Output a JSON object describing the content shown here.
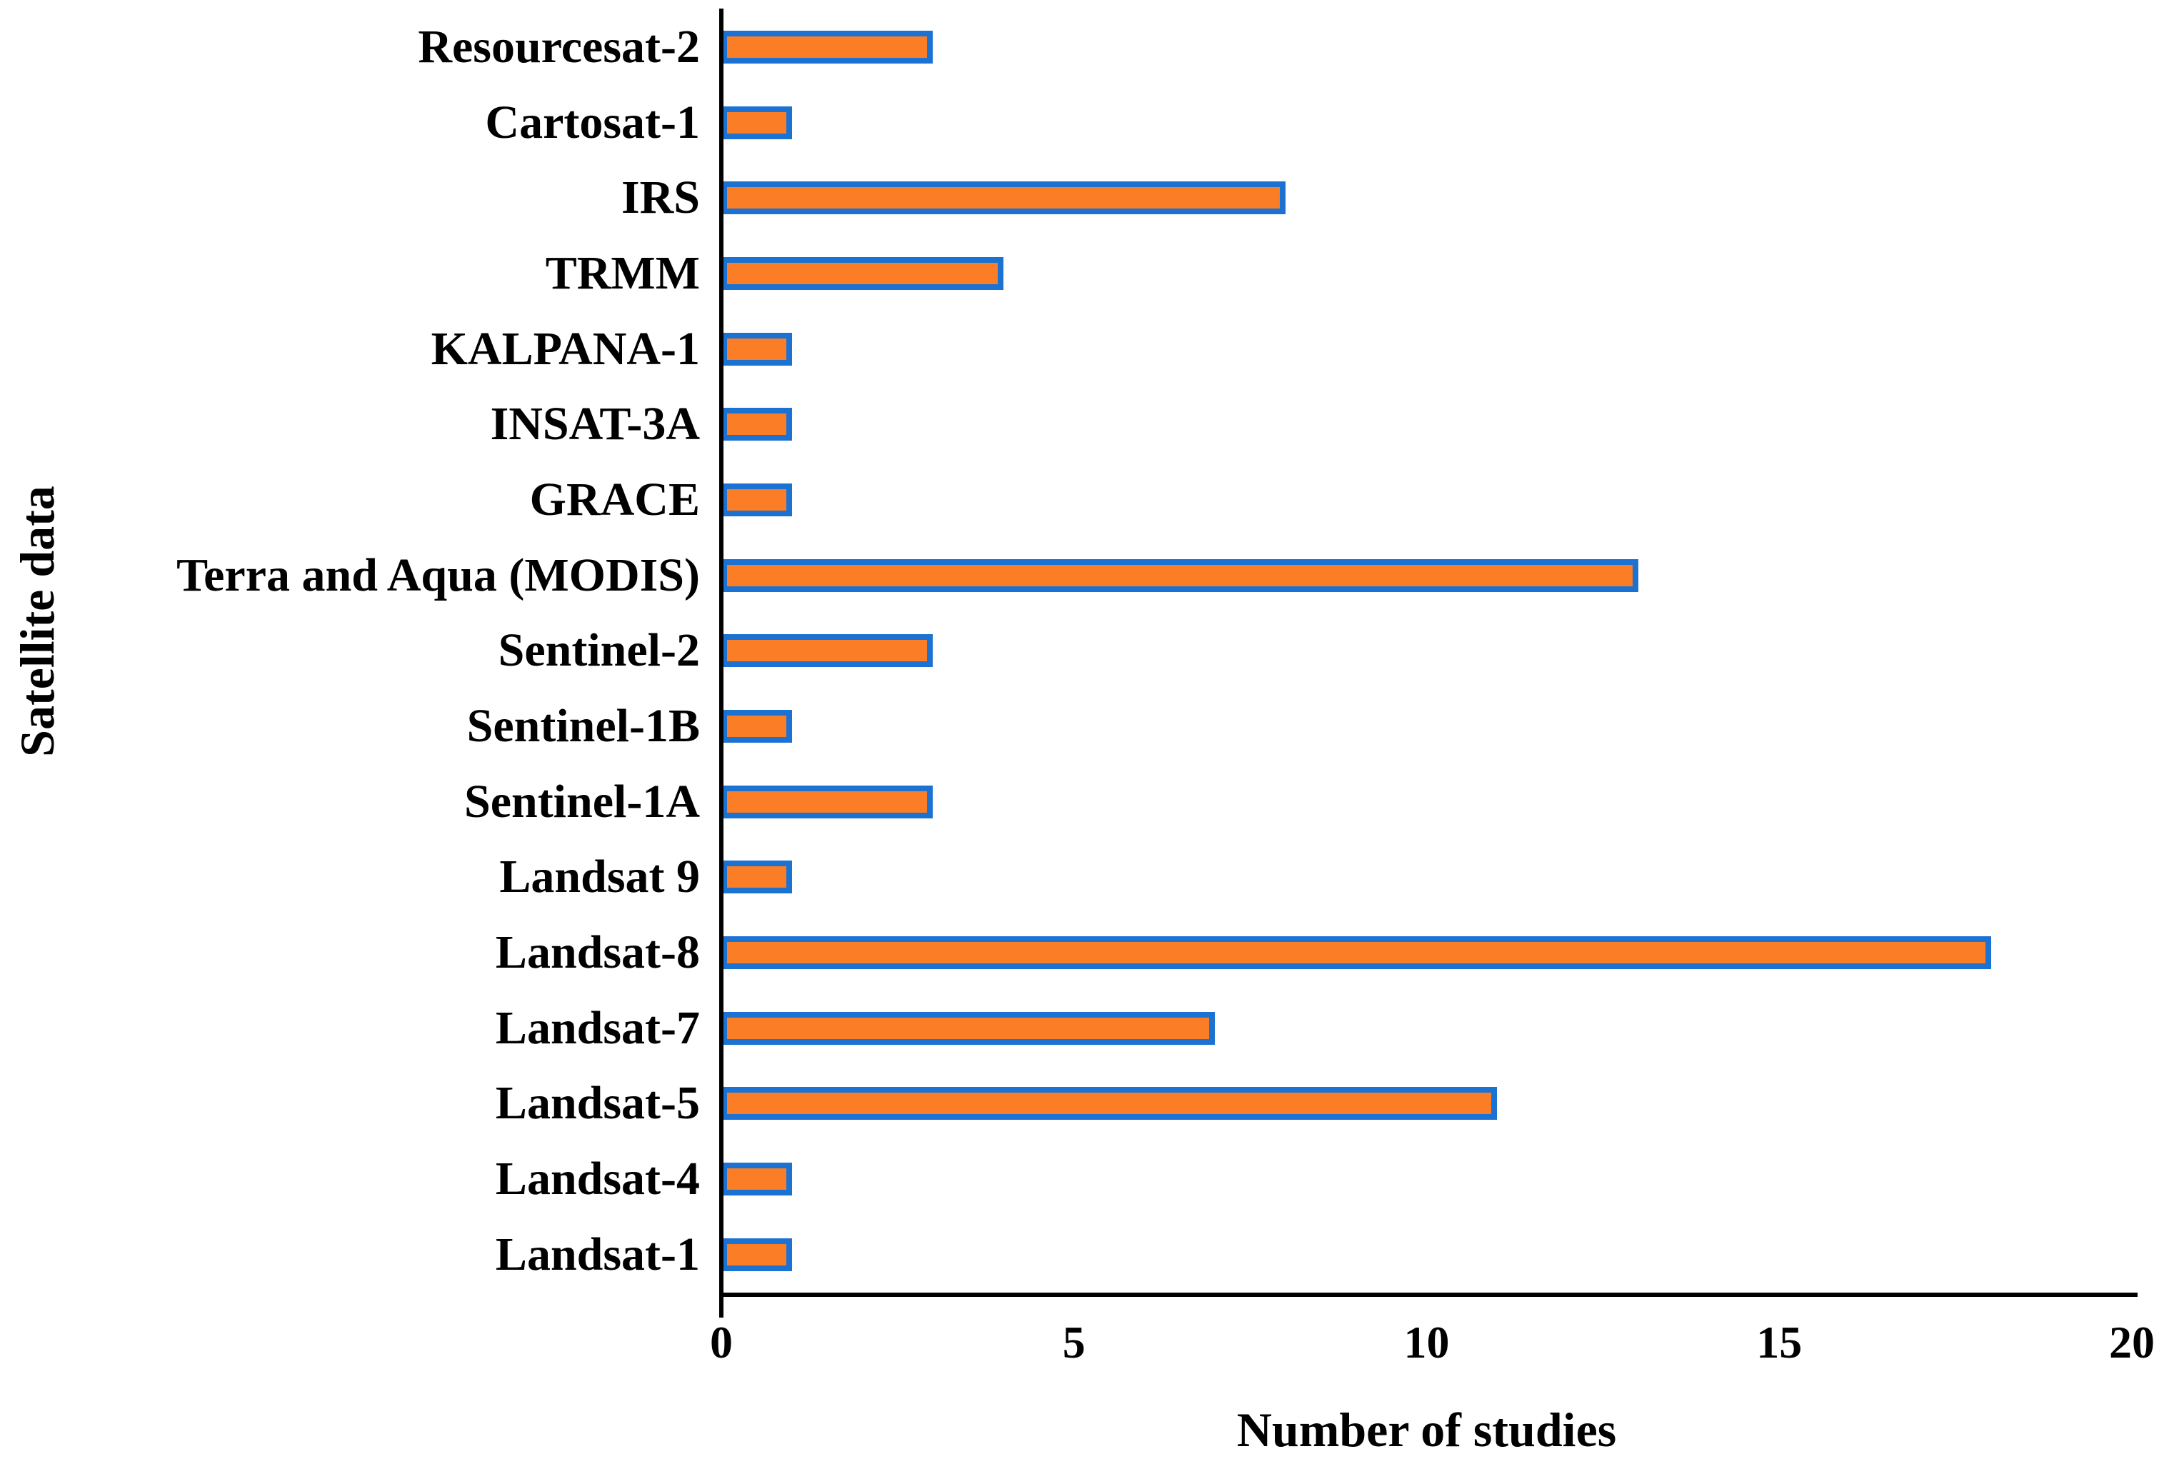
{
  "chart_data": {
    "type": "bar",
    "orientation": "horizontal",
    "title": "",
    "xlabel": "Number of studies",
    "ylabel": "Satellite data",
    "categories": [
      "Resourcesat-2",
      "Cartosat-1",
      "IRS",
      "TRMM",
      "KALPANA-1",
      "INSAT-3A",
      "GRACE",
      "Terra and Aqua (MODIS)",
      "Sentinel-2",
      "Sentinel-1B",
      "Sentinel-1A",
      "Landsat 9",
      "Landsat-8",
      "Landsat-7",
      "Landsat-5",
      "Landsat-4",
      "Landsat-1"
    ],
    "values": [
      3,
      1,
      8,
      4,
      1,
      1,
      1,
      13,
      3,
      1,
      3,
      1,
      18,
      7,
      11,
      1,
      1
    ],
    "x_ticks": [
      "0",
      "5",
      "10",
      "15",
      "20"
    ],
    "x_tick_values": [
      0,
      5,
      10,
      15,
      20
    ],
    "xlim": [
      0,
      20
    ],
    "grid": false,
    "legend": "none",
    "colors": {
      "bar_fill": "#FB7D26",
      "bar_border": "#1C72D2",
      "axis": "#000000",
      "text": "#000000"
    }
  }
}
